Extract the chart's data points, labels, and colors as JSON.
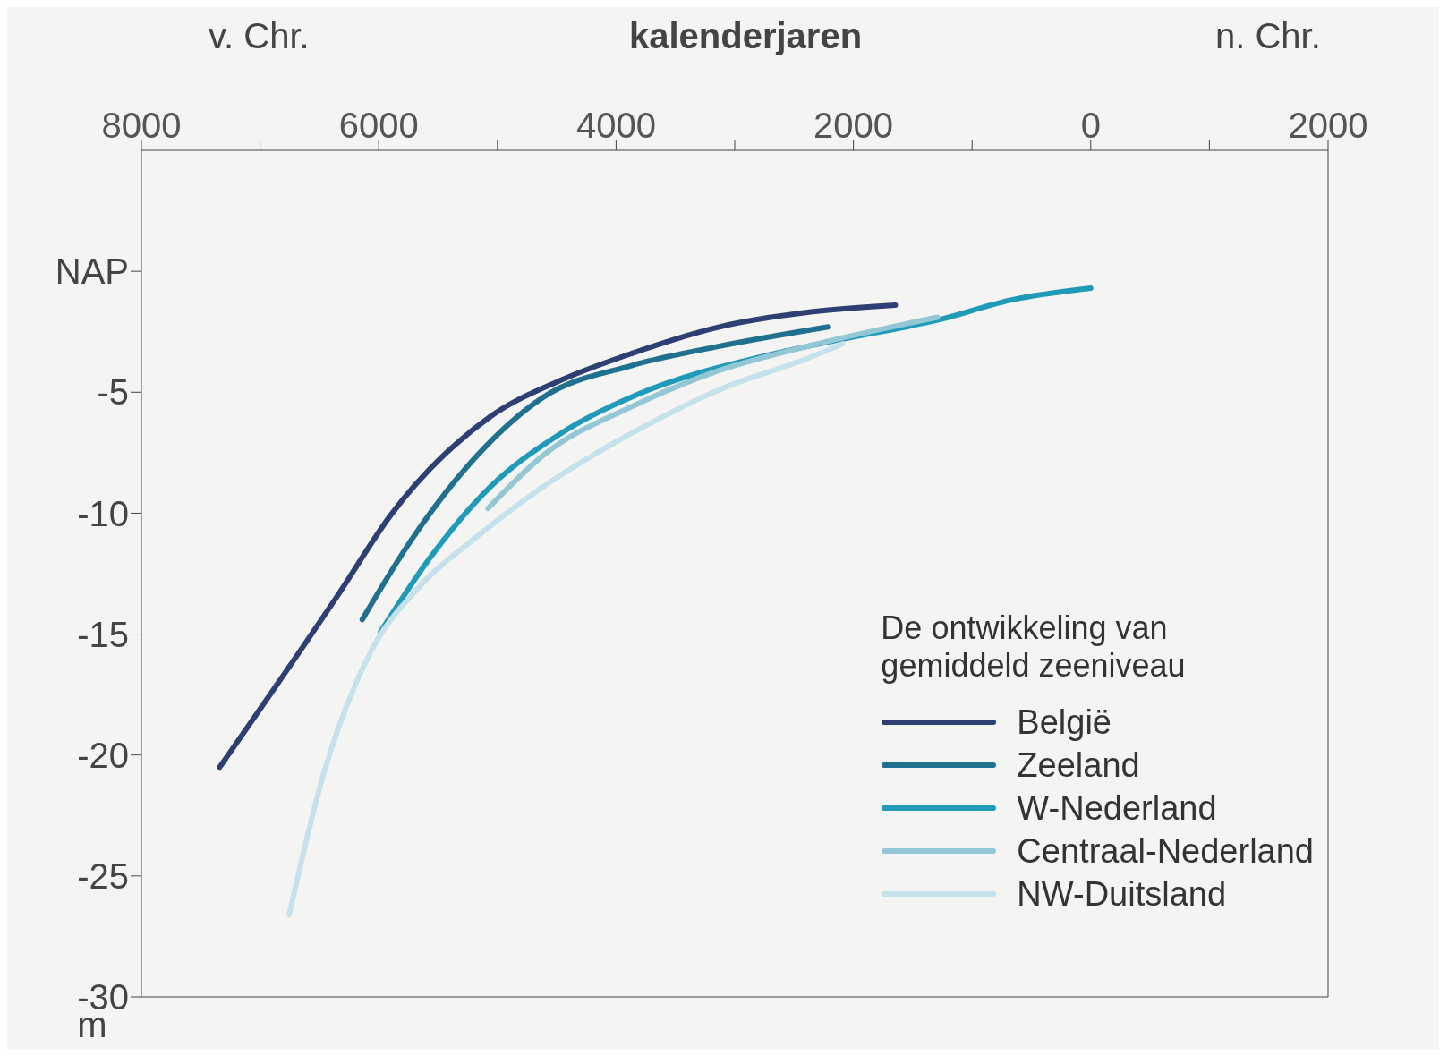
{
  "chart_data": {
    "type": "line",
    "xlabel": "kalenderjaren",
    "ylabel": "m",
    "legend_title": "De ontwikkeling van gemiddeld zeeniveau",
    "annotations": [
      "v. Chr.",
      "n. Chr."
    ],
    "xlim": [
      -8000,
      2000
    ],
    "xticks": [
      {
        "value": -8000,
        "label": "8000"
      },
      {
        "value": -7000,
        "label": null
      },
      {
        "value": -6000,
        "label": "6000"
      },
      {
        "value": -5000,
        "label": null
      },
      {
        "value": -4000,
        "label": "4000"
      },
      {
        "value": -3000,
        "label": null
      },
      {
        "value": -2000,
        "label": "2000"
      },
      {
        "value": -1000,
        "label": null
      },
      0,
      {
        "value": 1000,
        "label": null
      },
      2000
    ],
    "ylim": [
      -30,
      5
    ],
    "yticks": [
      {
        "value": 0,
        "label": "NAP"
      },
      -5,
      -10,
      -15,
      -20,
      -25,
      -30
    ],
    "legend": "bottom right",
    "line_style": "solid",
    "series": [
      {
        "name": "België",
        "color": "#2e3f74",
        "x": [
          -7340,
          -6332,
          -5902,
          -5057,
          -4464,
          -3871,
          -3130,
          -2388,
          -1647
        ],
        "values": [
          -20.5,
          -13.3,
          -10.1,
          -6.0,
          -4.5,
          -3.4,
          -2.3,
          -1.7,
          -1.4
        ]
      },
      {
        "name": "Zeeland",
        "color": "#20708f",
        "x": [
          -6139,
          -5724,
          -5205,
          -4612,
          -3871,
          -3130,
          -2210
        ],
        "values": [
          -14.4,
          -11.1,
          -7.8,
          -5.2,
          -3.9,
          -3.1,
          -2.3
        ]
      },
      {
        "name": "W-Nederland",
        "color": "#1f9ab8",
        "x": [
          -5984,
          -5576,
          -5057,
          -4464,
          -3723,
          -2833,
          -2092,
          -1276,
          -683,
          0
        ],
        "values": [
          -14.9,
          -11.9,
          -8.9,
          -6.7,
          -4.9,
          -3.6,
          -2.8,
          -2.0,
          -1.2,
          -0.7
        ]
      },
      {
        "name": "Centraal-Nederland",
        "color": "#93c7d5",
        "x": [
          -5079,
          -4612,
          -3871,
          -3130,
          -2388,
          -1291
        ],
        "values": [
          -9.8,
          -7.6,
          -5.6,
          -4.1,
          -3.1,
          -1.9
        ]
      },
      {
        "name": "NW-Duitsland",
        "color": "#c5e2ec",
        "x": [
          -6755,
          -6466,
          -6095,
          -5650,
          -5205,
          -4612,
          -3871,
          -3130,
          -2388,
          -2092
        ],
        "values": [
          -26.6,
          -20.8,
          -16.0,
          -13.0,
          -11.1,
          -8.9,
          -6.7,
          -4.9,
          -3.6,
          -3.0
        ]
      }
    ]
  }
}
